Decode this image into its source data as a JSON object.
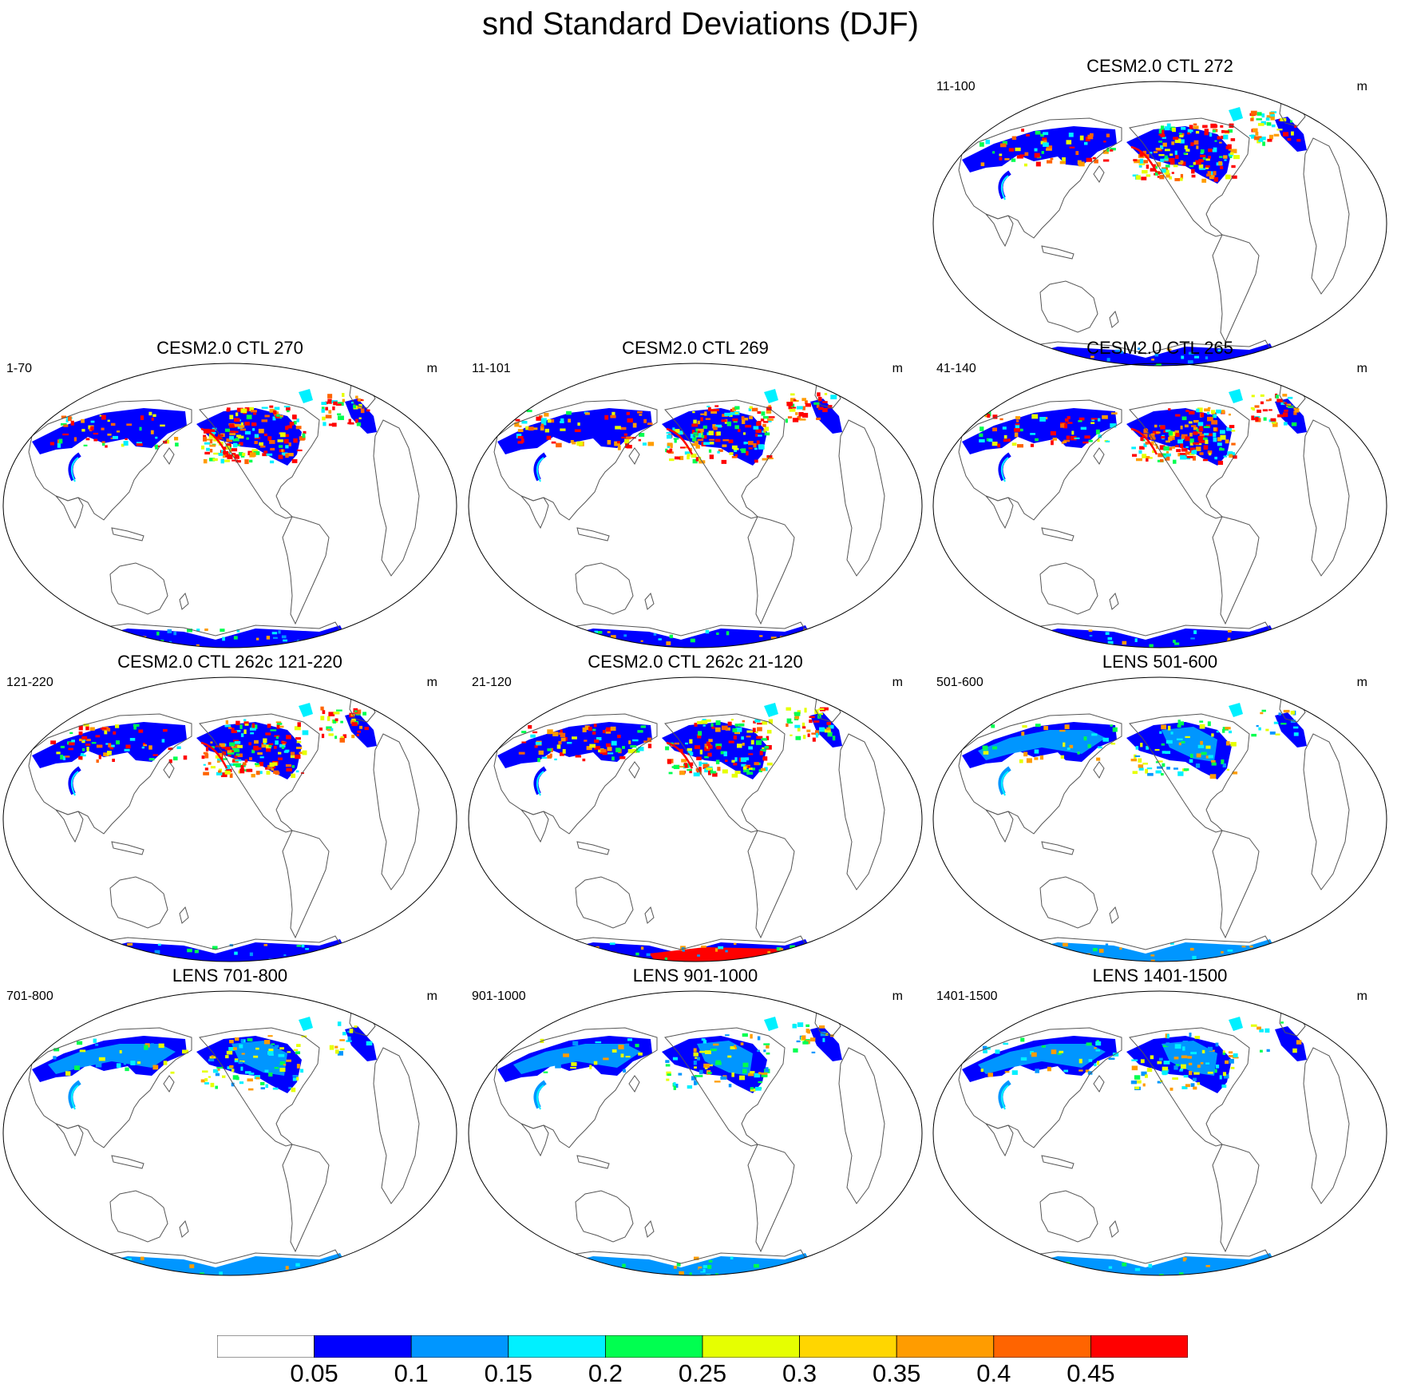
{
  "title": "snd Standard Deviations (DJF)",
  "panels": [
    {
      "title": "CESM2.0 CTL 272",
      "left_label": "11-100",
      "unit": "m",
      "snow_style": "ctl"
    },
    {
      "title": "CESM2.0 CTL 270",
      "left_label": "1-70",
      "unit": "m",
      "snow_style": "ctl"
    },
    {
      "title": "CESM2.0 CTL 269",
      "left_label": "11-101",
      "unit": "m",
      "snow_style": "ctl"
    },
    {
      "title": "CESM2.0 CTL 265",
      "left_label": "41-140",
      "unit": "m",
      "snow_style": "ctl"
    },
    {
      "title": "CESM2.0 CTL 262c 121-220",
      "left_label": "121-220",
      "unit": "m",
      "snow_style": "ctl"
    },
    {
      "title": "CESM2.0 CTL 262c 21-120",
      "left_label": "21-120",
      "unit": "m",
      "snow_style": "ctl_high_antarctic"
    },
    {
      "title": "LENS 501-600",
      "left_label": "501-600",
      "unit": "m",
      "snow_style": "lens"
    },
    {
      "title": "LENS 701-800",
      "left_label": "701-800",
      "unit": "m",
      "snow_style": "lens"
    },
    {
      "title": "LENS 901-1000",
      "left_label": "901-1000",
      "unit": "m",
      "snow_style": "lens"
    },
    {
      "title": "LENS 1401-1500",
      "left_label": "1401-1500",
      "unit": "m",
      "snow_style": "lens"
    }
  ],
  "colorbar": {
    "colors": [
      "#ffffff",
      "#0000ff",
      "#0096ff",
      "#00f0ff",
      "#00ff50",
      "#e6ff00",
      "#ffd600",
      "#ff9c00",
      "#ff6400",
      "#ff0000"
    ],
    "labels": [
      "0.05",
      "0.1",
      "0.15",
      "0.2",
      "0.25",
      "0.3",
      "0.35",
      "0.4",
      "0.45"
    ]
  }
}
